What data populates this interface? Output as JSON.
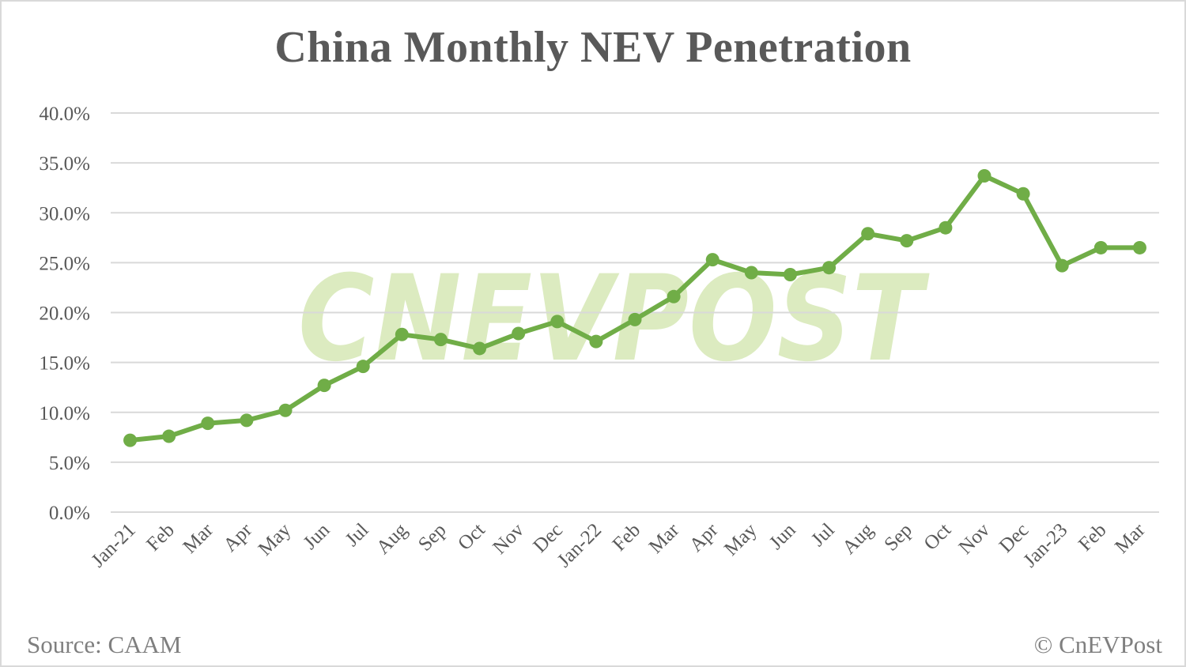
{
  "title": "China Monthly NEV Penetration",
  "footer": {
    "source": "Source: CAAM",
    "copyright": "© CnEVPost"
  },
  "watermark": "CNEVPOST",
  "colors": {
    "line": "#70ad47",
    "grid": "#d9d9d9",
    "watermark": "#dcebc0",
    "text": "#595959"
  },
  "chart_data": {
    "type": "line",
    "title": "China Monthly NEV Penetration",
    "xlabel": "",
    "ylabel": "",
    "ylim": [
      0,
      40
    ],
    "yticks": [
      "0.0%",
      "5.0%",
      "10.0%",
      "15.0%",
      "20.0%",
      "25.0%",
      "30.0%",
      "35.0%",
      "40.0%"
    ],
    "grid": true,
    "legend": "none",
    "categories": [
      "Jan-21",
      "Feb",
      "Mar",
      "Apr",
      "May",
      "Jun",
      "Jul",
      "Aug",
      "Sep",
      "Oct",
      "Nov",
      "Dec",
      "Jan-22",
      "Feb",
      "Mar",
      "Apr",
      "May",
      "Jun",
      "Jul",
      "Aug",
      "Sep",
      "Oct",
      "Nov",
      "Dec",
      "Jan-23",
      "Feb",
      "Mar"
    ],
    "series": [
      {
        "name": "NEV Penetration",
        "values": [
          7.2,
          7.6,
          8.9,
          9.2,
          10.2,
          12.7,
          14.6,
          17.8,
          17.3,
          16.4,
          17.9,
          19.1,
          17.1,
          19.3,
          21.6,
          25.3,
          24.0,
          23.8,
          24.5,
          27.9,
          27.2,
          28.5,
          33.7,
          31.9,
          24.7,
          26.5,
          26.5
        ]
      }
    ],
    "annotations": [
      "Source: CAAM",
      "© CnEVPost"
    ]
  }
}
